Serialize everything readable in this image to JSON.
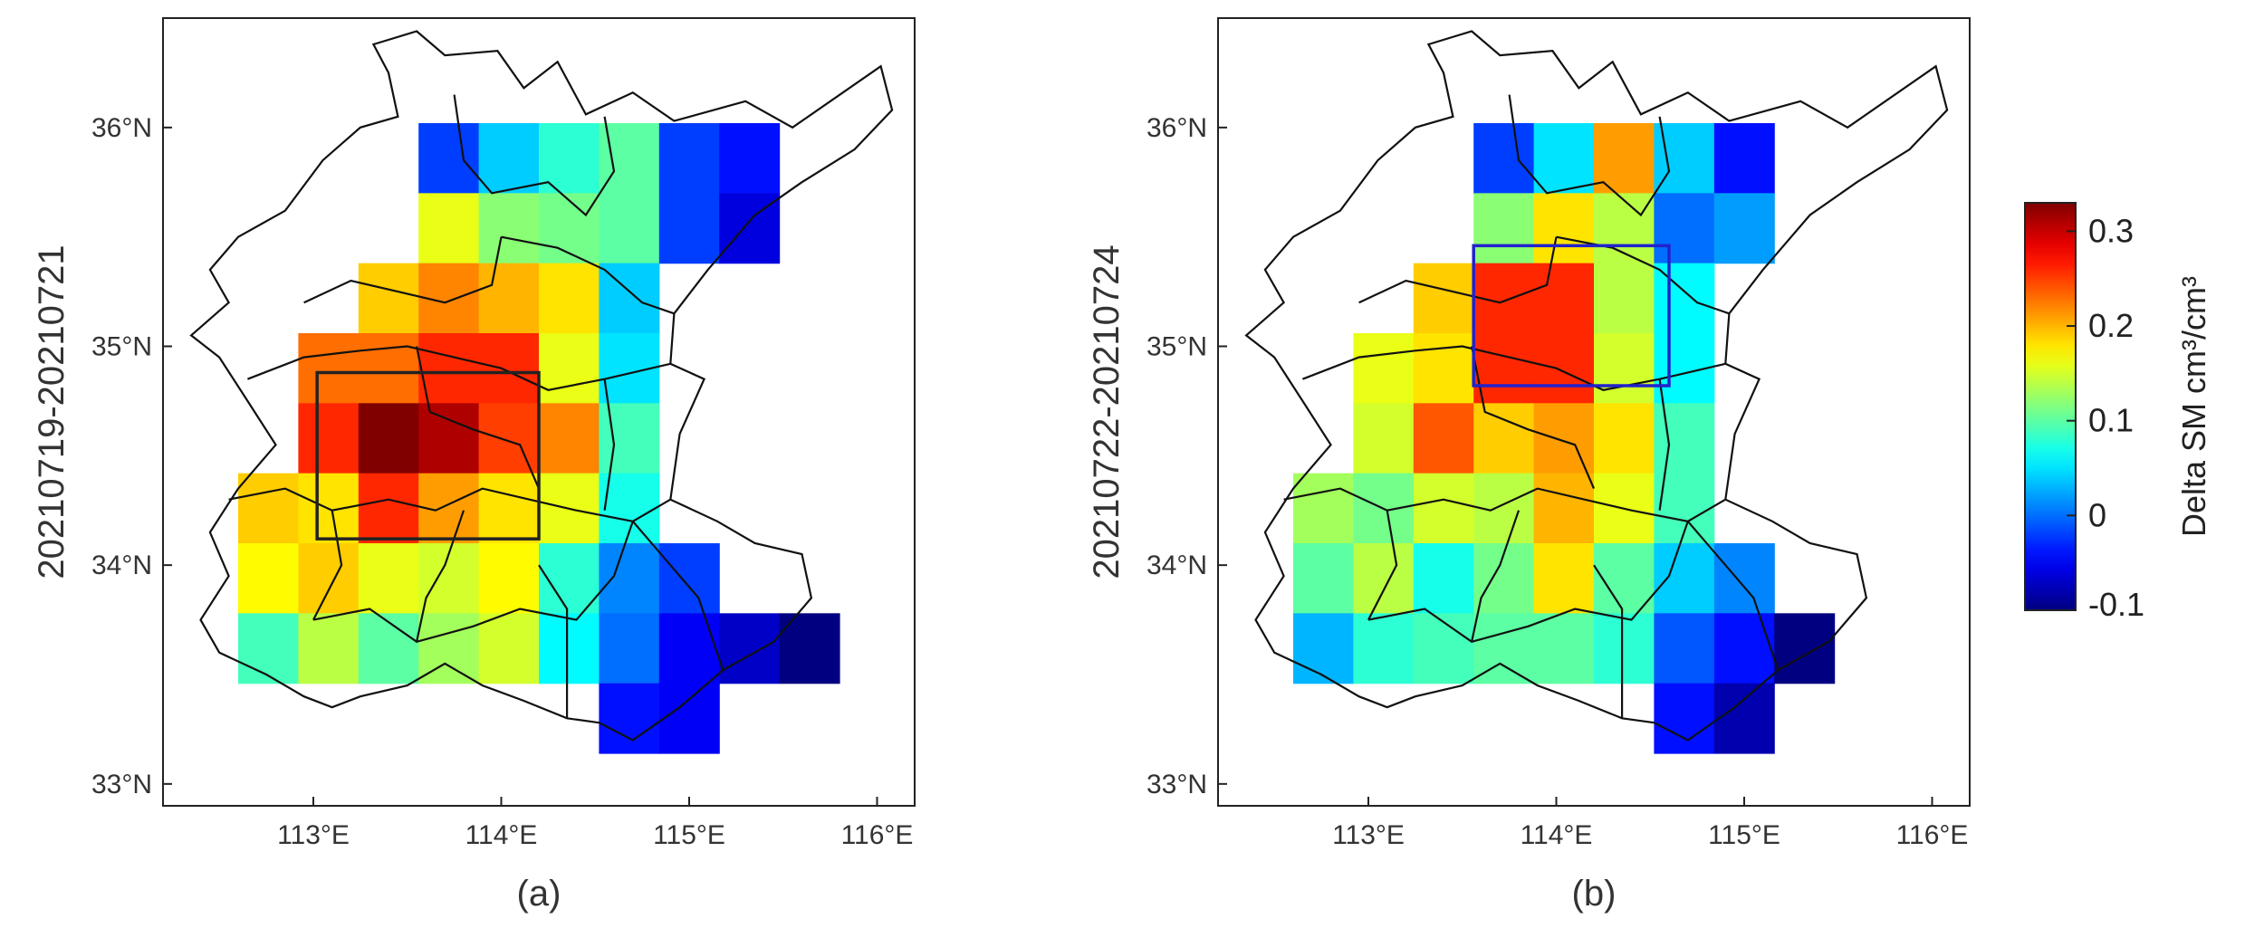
{
  "axes": {
    "x_range": [
      112.2,
      116.2
    ],
    "y_range": [
      32.9,
      36.5
    ],
    "x_ticks": [
      113,
      114,
      115,
      116
    ],
    "y_ticks": [
      33,
      34,
      35,
      36
    ],
    "x_tick_labels": [
      "113°E",
      "114°E",
      "115°E",
      "116°E"
    ],
    "y_tick_labels": [
      "33°N",
      "34°N",
      "35°N",
      "36°N"
    ]
  },
  "colorbar": {
    "label": "Delta SM cm³/cm³",
    "min": -0.1,
    "max": 0.33,
    "tick_values": [
      -0.1,
      0,
      0.1,
      0.2,
      0.3
    ],
    "tick_labels": [
      "-0.1",
      "0",
      "0.1",
      "0.2",
      "0.3"
    ],
    "colormap": "jet"
  },
  "grid": {
    "cell_size_deg": 0.32,
    "x_start": 112.6,
    "y_top": 36.02,
    "columns": 10,
    "rows": 9
  },
  "panels": [
    {
      "caption": "(a)",
      "ylabel": "20210719-20210721",
      "box": {
        "color": "#222222",
        "lon": [
          113.02,
          114.2
        ],
        "lat": [
          34.12,
          34.88
        ]
      },
      "grid_values": [
        [
          null,
          null,
          null,
          -0.02,
          0.04,
          0.08,
          0.1,
          -0.02,
          -0.04,
          null
        ],
        [
          null,
          null,
          null,
          0.16,
          0.12,
          0.11,
          0.1,
          -0.02,
          -0.06,
          null
        ],
        [
          null,
          null,
          0.19,
          0.22,
          0.2,
          0.18,
          0.04,
          null,
          null,
          null
        ],
        [
          null,
          0.23,
          0.23,
          0.26,
          0.26,
          0.16,
          0.05,
          null,
          null,
          null
        ],
        [
          null,
          0.26,
          0.33,
          0.31,
          0.25,
          0.22,
          0.09,
          null,
          null,
          null
        ],
        [
          0.19,
          0.18,
          0.26,
          0.21,
          0.18,
          0.16,
          0.07,
          null,
          null,
          null
        ],
        [
          0.17,
          0.19,
          0.16,
          0.15,
          0.17,
          0.08,
          0.01,
          -0.02,
          null,
          null
        ],
        [
          0.09,
          0.14,
          0.1,
          0.13,
          0.15,
          0.06,
          0.0,
          -0.05,
          -0.07,
          -0.1
        ],
        [
          null,
          null,
          null,
          null,
          null,
          null,
          -0.04,
          -0.05,
          null,
          null
        ]
      ],
      "boundary_scale": 1.0
    },
    {
      "caption": "(b)",
      "ylabel": "20210722-20210724",
      "box": {
        "color": "#2222cc",
        "lon": [
          113.56,
          114.6
        ],
        "lat": [
          34.82,
          35.46
        ]
      },
      "grid_values": [
        [
          null,
          null,
          null,
          -0.02,
          0.05,
          0.21,
          0.04,
          -0.04,
          null,
          null
        ],
        [
          null,
          null,
          null,
          0.12,
          0.18,
          0.14,
          0.0,
          0.02,
          null,
          null
        ],
        [
          null,
          null,
          0.19,
          0.26,
          0.26,
          0.14,
          0.06,
          null,
          null,
          null
        ],
        [
          null,
          0.16,
          0.18,
          0.26,
          0.26,
          0.15,
          0.06,
          null,
          null,
          null
        ],
        [
          null,
          0.15,
          0.24,
          0.19,
          0.21,
          0.18,
          0.09,
          null,
          null,
          null
        ],
        [
          0.13,
          0.11,
          0.15,
          0.14,
          0.2,
          0.16,
          0.09,
          null,
          null,
          null
        ],
        [
          0.1,
          0.14,
          0.07,
          0.11,
          0.18,
          0.1,
          0.04,
          0.01,
          null,
          null
        ],
        [
          0.03,
          0.08,
          0.09,
          0.1,
          0.1,
          0.08,
          -0.01,
          -0.04,
          -0.1,
          null
        ],
        [
          null,
          null,
          null,
          null,
          null,
          null,
          -0.04,
          -0.08,
          null,
          null
        ]
      ],
      "boundary_scale": 1.0
    }
  ]
}
